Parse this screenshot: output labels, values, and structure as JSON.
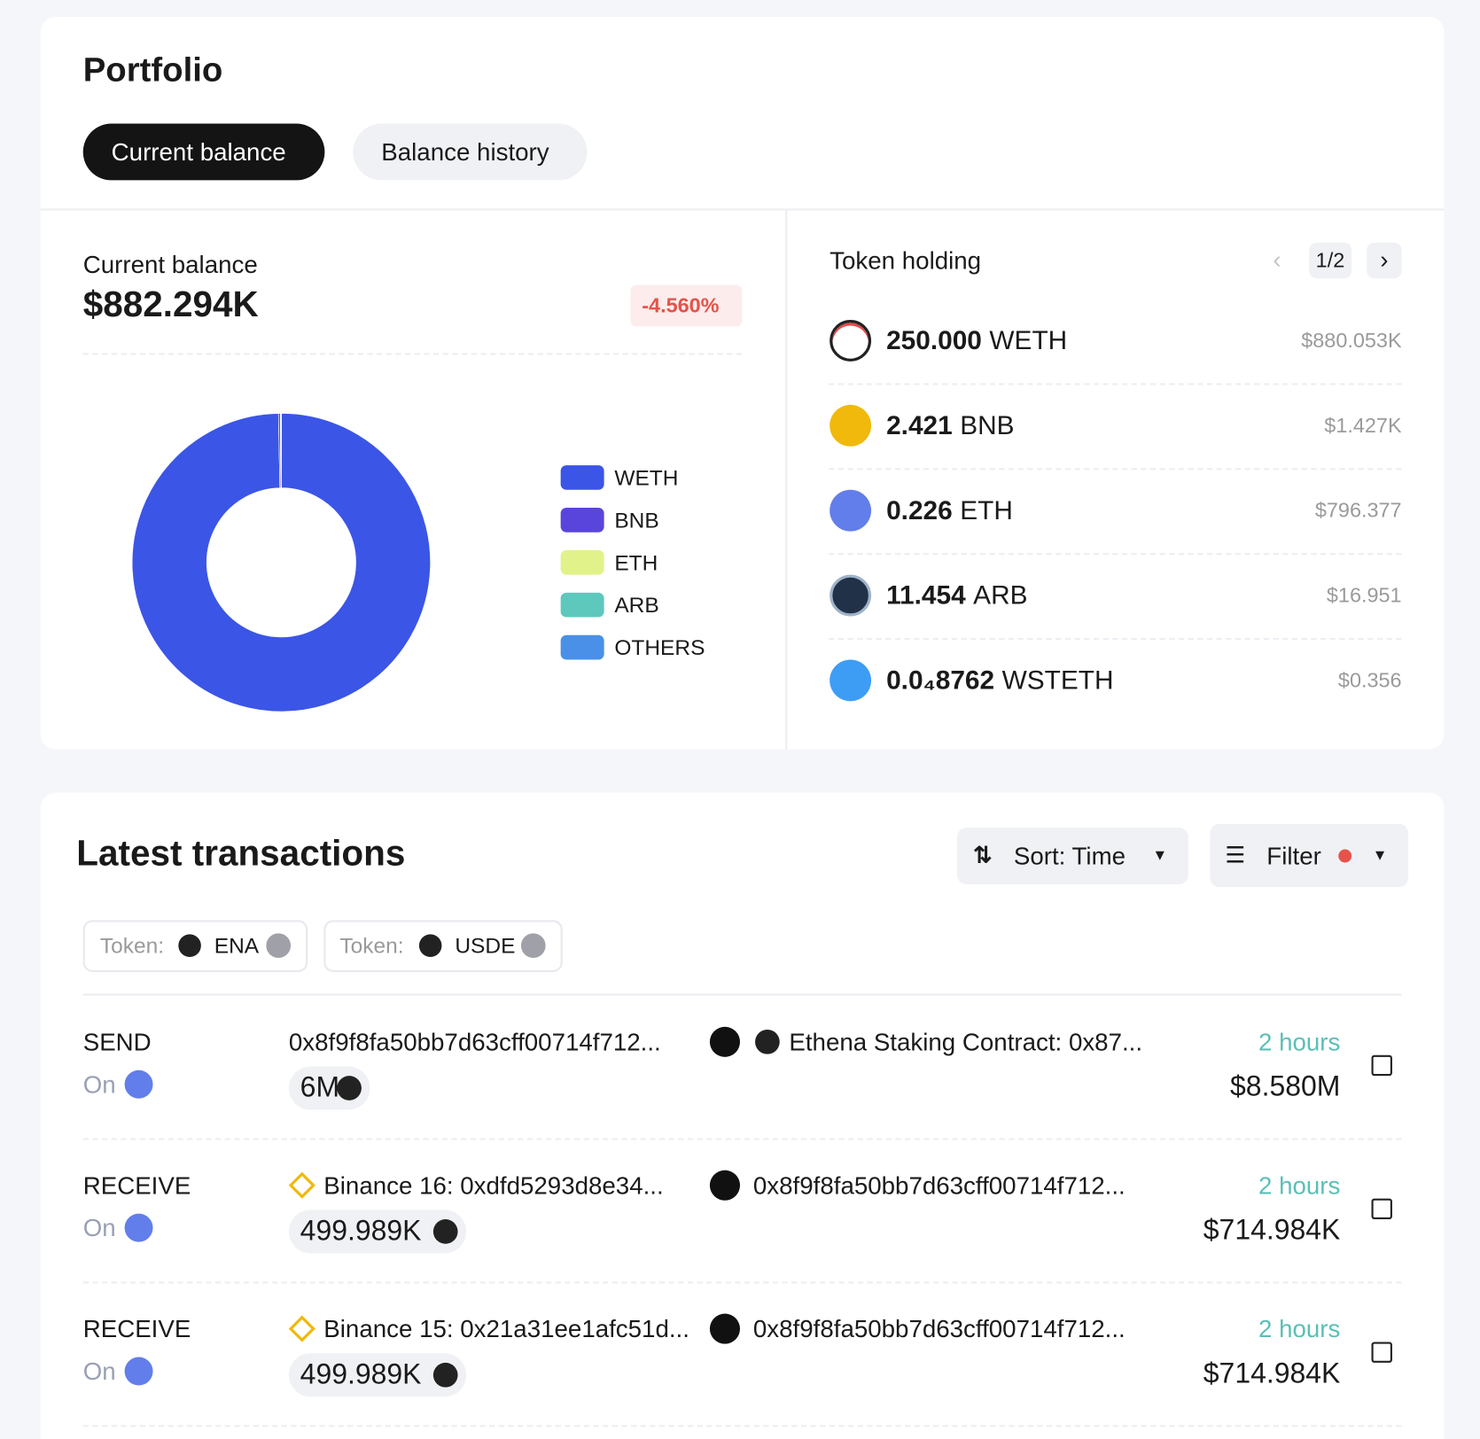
{
  "header": {
    "title": "Portfolio",
    "tabs": [
      "Current balance",
      "Balance history"
    ]
  },
  "balance": {
    "label": "Current balance",
    "value": "$882.294K",
    "change": "-4.560%"
  },
  "chart_data": {
    "type": "donut",
    "categories": [
      "WETH",
      "BNB",
      "ETH",
      "ARB",
      "OTHERS"
    ],
    "values": [
      99.7,
      0.2,
      0.1,
      0,
      0
    ],
    "colors": [
      "#3b55e6",
      "#5a45dc",
      "#e2f28a",
      "#5ec8bd",
      "#4a90e8"
    ]
  },
  "holdings": {
    "title": "Token holding",
    "page": "1/2",
    "rows": [
      {
        "amount": "250.000",
        "symbol": "WETH",
        "value": "$880.053K"
      },
      {
        "amount": "2.421",
        "symbol": "BNB",
        "value": "$1.427K"
      },
      {
        "amount": "0.226",
        "symbol": "ETH",
        "value": "$796.377"
      },
      {
        "amount": "11.454",
        "symbol": "ARB",
        "value": "$16.951"
      },
      {
        "amount": "0.0₄8762",
        "symbol": "WSTETH",
        "value": "$0.356"
      }
    ]
  },
  "transactions": {
    "title": "Latest transactions",
    "sort": "Sort: Time",
    "filter": "Filter",
    "chips": [
      {
        "label": "Token:",
        "token": "ENA"
      },
      {
        "label": "Token:",
        "token": "USDE"
      }
    ],
    "rows": [
      {
        "type": "SEND",
        "on": "On",
        "from": "0x8f9f8fa50bb7d63cff00714f712...",
        "to": "Ethena Staking Contract: 0x87...",
        "amount": "6M",
        "time": "2 hours",
        "value": "$8.580M"
      },
      {
        "type": "RECEIVE",
        "on": "On",
        "from": "Binance 16: 0xdfd5293d8e34...",
        "to": "0x8f9f8fa50bb7d63cff00714f712...",
        "amount": "499.989K",
        "time": "2 hours",
        "value": "$714.984K"
      },
      {
        "type": "RECEIVE",
        "on": "On",
        "from": "Binance 15: 0x21a31ee1afc51d...",
        "to": "0x8f9f8fa50bb7d63cff00714f712...",
        "amount": "499.989K",
        "time": "2 hours",
        "value": "$714.984K"
      }
    ]
  }
}
